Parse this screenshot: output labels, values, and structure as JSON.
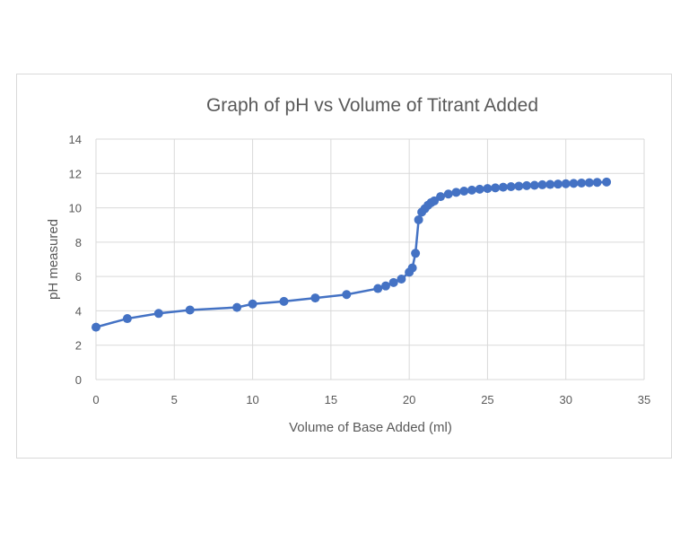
{
  "chart_data": {
    "type": "line",
    "title": "Graph of pH vs Volume of Titrant Added",
    "xlabel": "Volume of Base Added (ml)",
    "ylabel": "pH measured",
    "xlim": [
      0,
      35
    ],
    "ylim": [
      0,
      14
    ],
    "xticks": [
      "0",
      "5",
      "10",
      "15",
      "20",
      "25",
      "30",
      "35"
    ],
    "yticks": [
      "0",
      "2",
      "4",
      "6",
      "8",
      "10",
      "12",
      "14"
    ],
    "grid": true,
    "markers": true,
    "color": "#4472C4",
    "series": [
      {
        "x": [
          0,
          2,
          4,
          6,
          9,
          10,
          12,
          14,
          16,
          18,
          18.5,
          19,
          19.5,
          20,
          20.2,
          20.4,
          20.6,
          20.8,
          21,
          21.2,
          21.4,
          21.6,
          22,
          22.5,
          23,
          23.5,
          24,
          24.5,
          25,
          25.5,
          26,
          26.5,
          27,
          27.5,
          28,
          28.5,
          29,
          29.5,
          30,
          30.5,
          31,
          31.5,
          32,
          32.6
        ],
        "y": [
          3.05,
          3.55,
          3.85,
          4.05,
          4.2,
          4.4,
          4.55,
          4.75,
          4.95,
          5.3,
          5.45,
          5.65,
          5.85,
          6.25,
          6.5,
          7.35,
          9.3,
          9.75,
          9.95,
          10.15,
          10.3,
          10.4,
          10.65,
          10.8,
          10.9,
          10.97,
          11.03,
          11.08,
          11.12,
          11.16,
          11.2,
          11.23,
          11.26,
          11.29,
          11.31,
          11.34,
          11.36,
          11.38,
          11.4,
          11.42,
          11.44,
          11.46,
          11.48,
          11.5
        ]
      }
    ]
  }
}
